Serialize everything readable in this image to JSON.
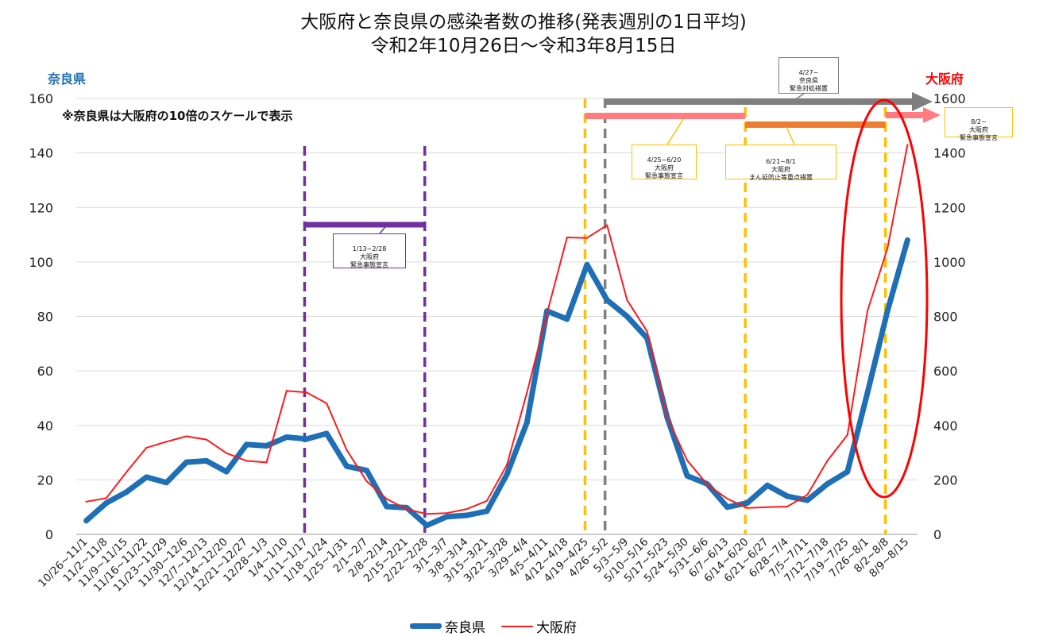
{
  "chart_data": {
    "type": "line",
    "title": "大阪府と奈良県の感染者数の推移(発表週別の1日平均)",
    "subtitle": "令和2年10月26日～令和3年8月15日",
    "note": "※奈良県は大阪府の10倍のスケールで表示",
    "left_axis_label": "奈良県",
    "right_axis_label": "大阪府",
    "y_left": {
      "min": 0,
      "max": 160,
      "ticks": [
        0,
        20,
        40,
        60,
        80,
        100,
        120,
        140,
        160
      ]
    },
    "y_right": {
      "min": 0,
      "max": 1600,
      "ticks": [
        0,
        200,
        400,
        600,
        800,
        1000,
        1200,
        1400,
        1600
      ]
    },
    "grid": true,
    "legend_position": "bottom",
    "categories": [
      "10/26~11/1",
      "11/2~11/8",
      "11/9~11/15",
      "11/16~11/22",
      "11/23~11/29",
      "11/30~12/6",
      "12/7~12/13",
      "12/14~12/20",
      "12/21~12/27",
      "12/28~1/3",
      "1/4~1/10",
      "1/11~1/17",
      "1/18~1/24",
      "1/25~1/31",
      "2/1~2/7",
      "2/8~2/14",
      "2/15~2/21",
      "2/22~2/28",
      "3/1~3/7",
      "3/8~3/14",
      "3/15~3/21",
      "3/22~3/28",
      "3/29~4/4",
      "4/5~4/11",
      "4/12~4/18",
      "4/19~4/25",
      "4/26~5/2",
      "5/3~5/9",
      "5/10~5/16",
      "5/17~5/23",
      "5/24~5/30",
      "5/31~6/6",
      "6/7~6/13",
      "6/14~6/20",
      "6/21~6/27",
      "6/28~7/4",
      "7/5~7/11",
      "7/12~7/18",
      "7/19~7/25",
      "7/26~8/1",
      "8/2~8/8",
      "8/9~8/15"
    ],
    "series": [
      {
        "name": "奈良県",
        "axis": "left",
        "color": "#1f6fb6",
        "values": [
          5,
          11.5,
          15.5,
          21,
          19,
          26.5,
          27,
          23,
          33,
          32.5,
          35.7,
          35,
          37,
          25,
          23.5,
          10.2,
          9.8,
          3.3,
          6.5,
          7,
          8.5,
          22,
          41,
          82,
          79,
          99,
          86,
          80,
          72,
          43,
          21.5,
          18.5,
          10,
          11.5,
          18,
          14,
          12.5,
          18.5,
          23,
          52,
          82,
          108
        ]
      },
      {
        "name": "大阪府",
        "axis": "right",
        "color": "#ff1a1a",
        "values": [
          120,
          133,
          228,
          318,
          340,
          360,
          348,
          298,
          270,
          264,
          527,
          521,
          481,
          310,
          195,
          130,
          92,
          75,
          78,
          93,
          123,
          255,
          520,
          810,
          1090,
          1088,
          1135,
          860,
          745,
          430,
          272,
          183,
          131,
          97,
          100,
          102,
          145,
          270,
          365,
          820,
          1050,
          1430
        ]
      }
    ],
    "annotations": [
      {
        "label": "1/13~2/28\n大阪府\n緊急事態宣言",
        "color": "#7030a0"
      },
      {
        "label": "4/25~6/20\n大阪府\n緊急事態宣言",
        "color": "#ffc000"
      },
      {
        "label": "4/27~\n奈良県\n緊急対処措置",
        "color": "#7f7f7f"
      },
      {
        "label": "6/21~8/1\n大阪府\nまん延防止等重点措置",
        "color": "#ffc000"
      },
      {
        "label": "8/2~\n大阪府\n緊急事態宣言",
        "color": "#ffc000"
      }
    ],
    "highlight_color": "#ff0000"
  }
}
